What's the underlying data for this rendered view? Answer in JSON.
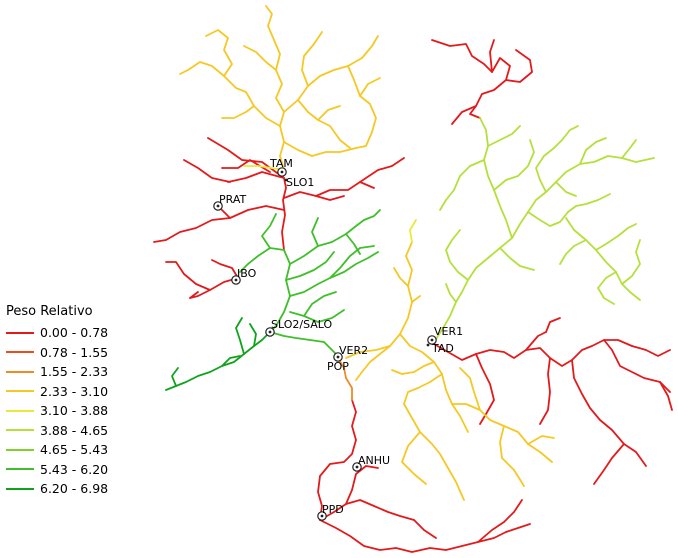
{
  "legend": {
    "title": "Peso Relativo",
    "classes": [
      {
        "label": "0.00 - 0.78",
        "color": "#e31a1c"
      },
      {
        "label": "0.78 - 1.55",
        "color": "#ef4a1e"
      },
      {
        "label": "1.55 - 2.33",
        "color": "#f08a24"
      },
      {
        "label": "2.33 - 3.10",
        "color": "#f5c826"
      },
      {
        "label": "3.10 - 3.88",
        "color": "#e8ea3a"
      },
      {
        "label": "3.88 - 4.65",
        "color": "#b5e03b"
      },
      {
        "label": "4.65 - 5.43",
        "color": "#7fd12e"
      },
      {
        "label": "5.43 - 6.20",
        "color": "#3fbf2a"
      },
      {
        "label": "6.20 - 6.98",
        "color": "#0fa31c"
      }
    ]
  },
  "stations": [
    {
      "name": "TAM"
    },
    {
      "name": "SLO1"
    },
    {
      "name": "PRAT"
    },
    {
      "name": "IBO"
    },
    {
      "name": "SLO2/SALO"
    },
    {
      "name": "VER2"
    },
    {
      "name": "POP"
    },
    {
      "name": "VER1"
    },
    {
      "name": "TAD"
    },
    {
      "name": "ANHU"
    },
    {
      "name": "PPD"
    }
  ]
}
